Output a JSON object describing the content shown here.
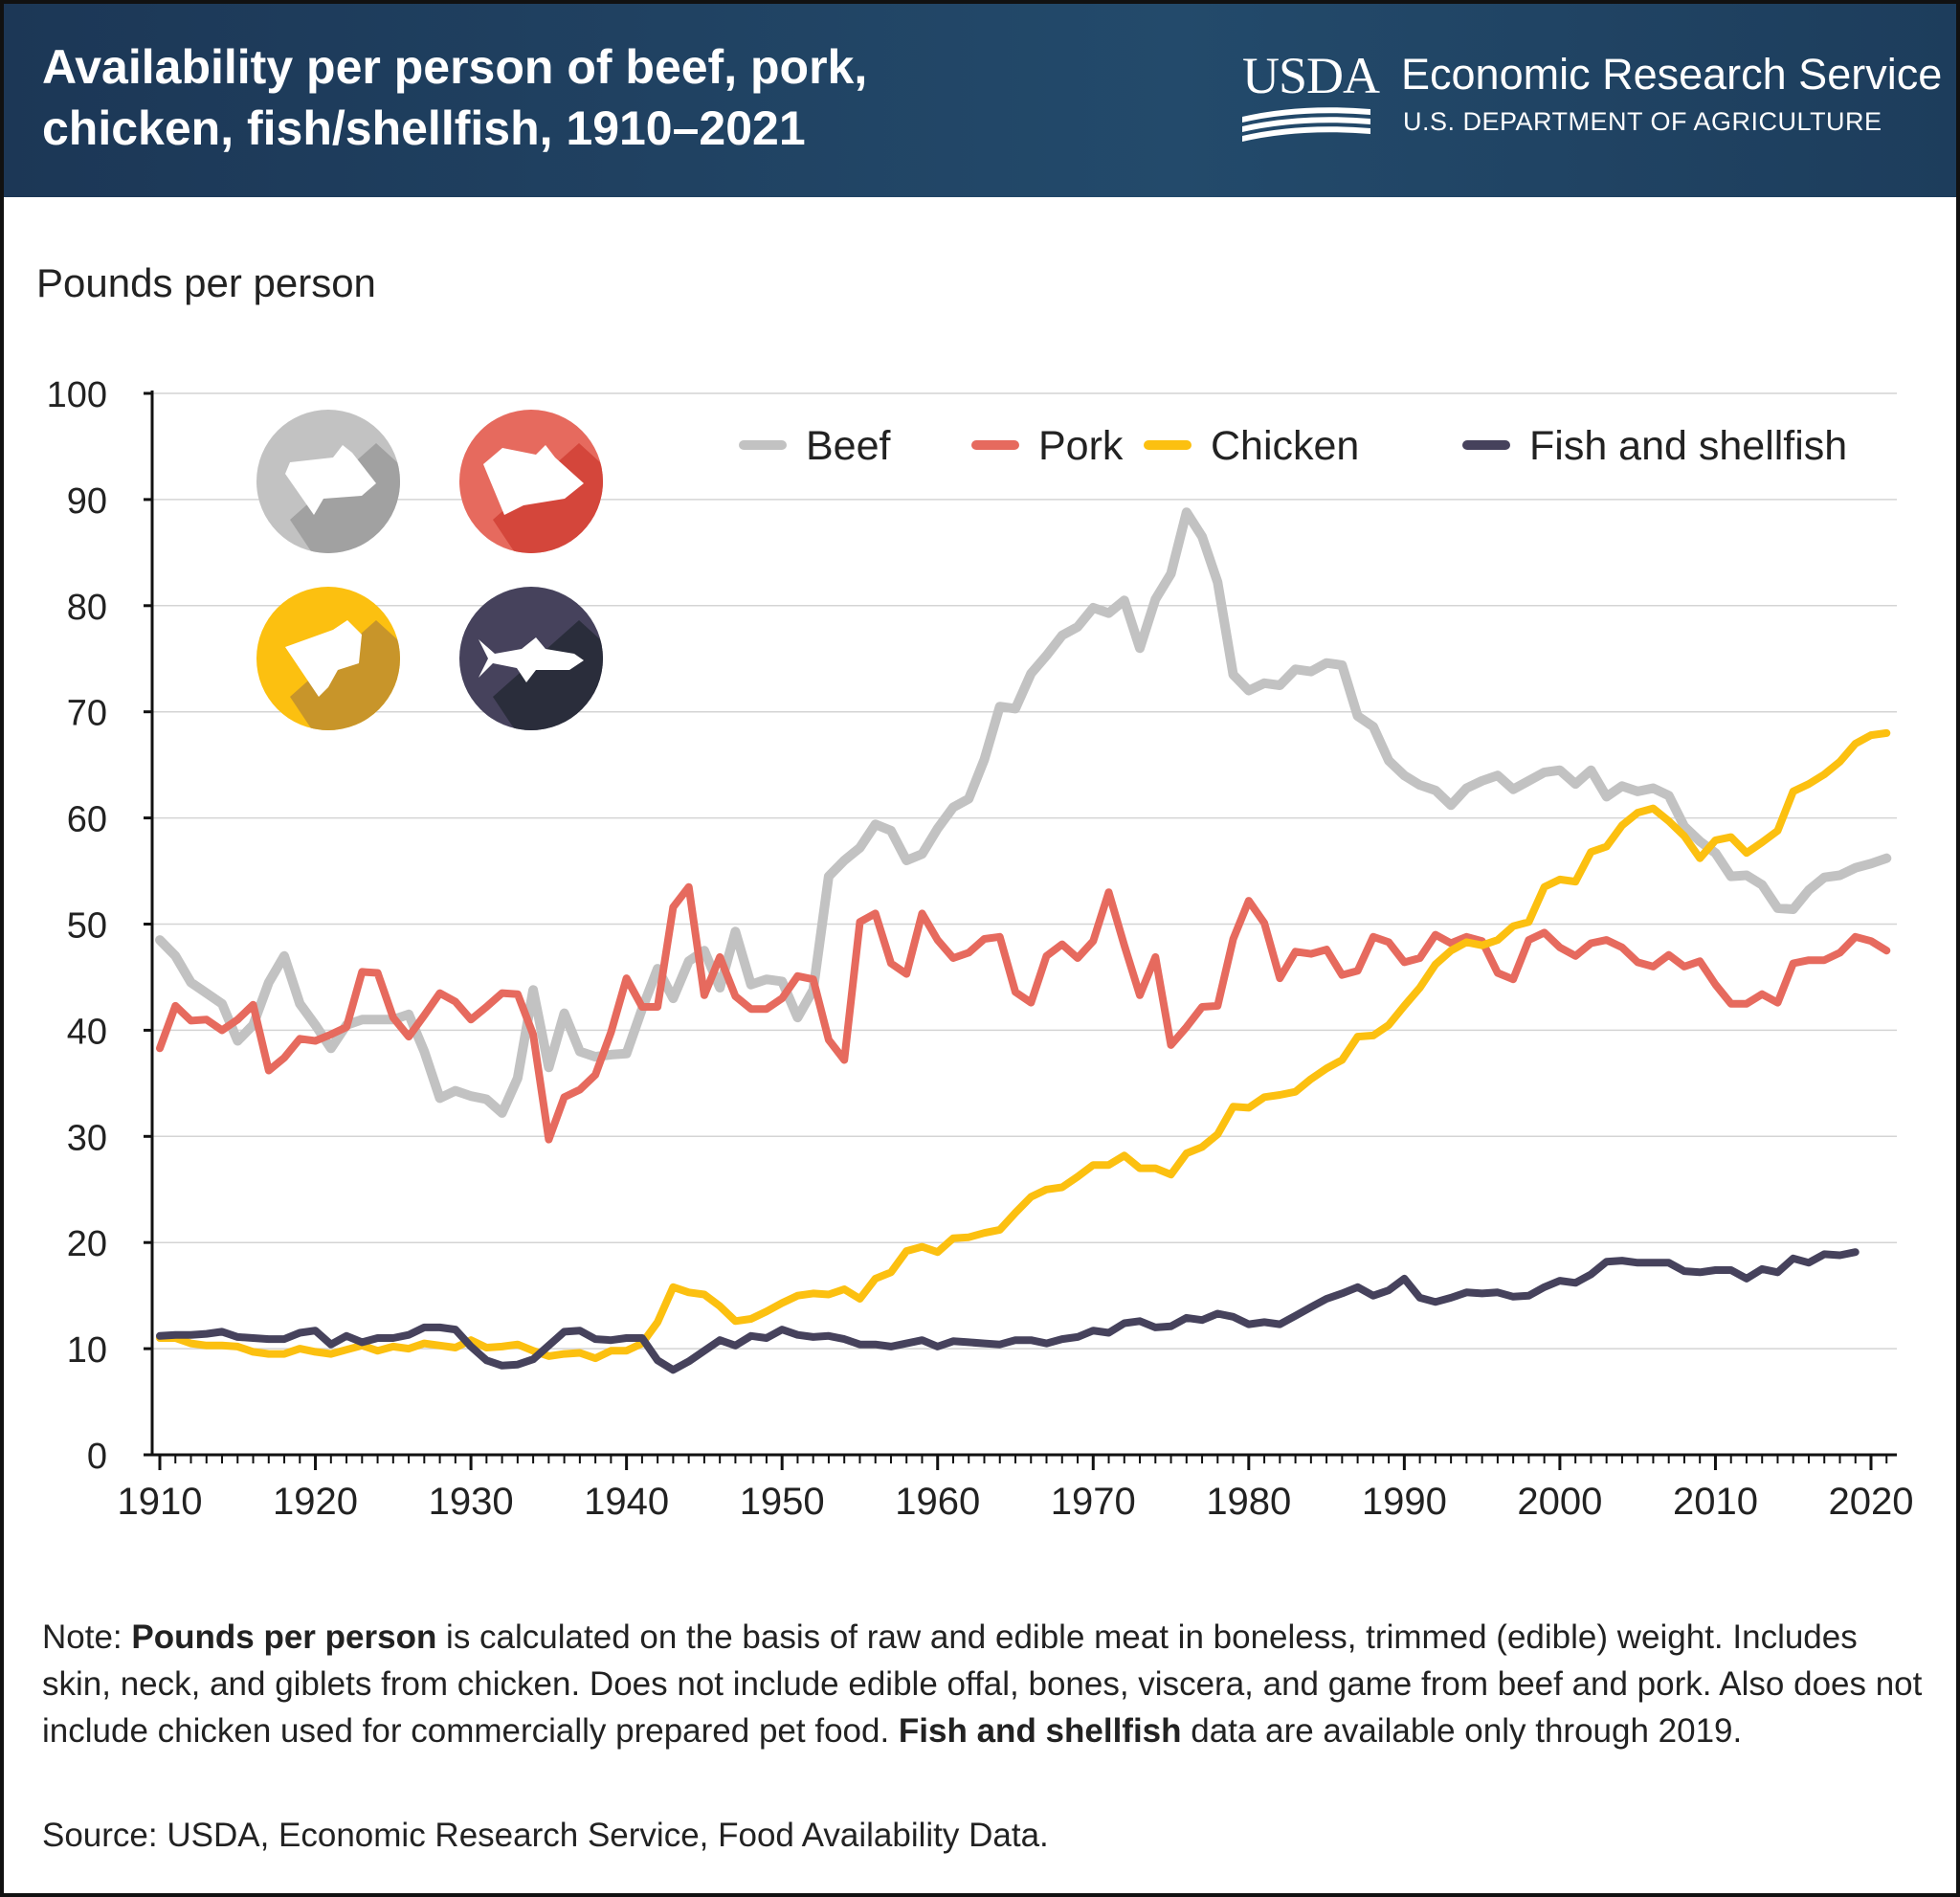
{
  "header": {
    "title": "Availability per person of beef, pork, chicken, fish/shellfish, 1910–2021",
    "logo_text": "USDA",
    "agency": "Economic Research Service",
    "department": "U.S. DEPARTMENT OF AGRICULTURE",
    "background_color": "#1c3756"
  },
  "icons": [
    {
      "name": "cow-icon",
      "color": "#c2c2c2"
    },
    {
      "name": "pig-icon",
      "color": "#e66a5e"
    },
    {
      "name": "chicken-icon",
      "color": "#fcc010"
    },
    {
      "name": "fish-icon",
      "color": "#46425c"
    }
  ],
  "chart_data": {
    "type": "line",
    "title": "Availability per person of beef, pork, chicken, fish/shellfish, 1910–2021",
    "ylabel": "Pounds per person",
    "xlabel": "",
    "xlim": [
      1910,
      2021
    ],
    "ylim": [
      0,
      100
    ],
    "x_ticks": [
      1910,
      1920,
      1930,
      1940,
      1950,
      1960,
      1970,
      1980,
      1990,
      2000,
      2010,
      2020
    ],
    "y_ticks": [
      0,
      10,
      20,
      30,
      40,
      50,
      60,
      70,
      80,
      90,
      100
    ],
    "grid": "horizontal",
    "legend_position": "top-right",
    "x_start": 1910,
    "series": [
      {
        "name": "Beef",
        "color": "#c2c2c2",
        "values": [
          48.5,
          47,
          44.5,
          43.5,
          42.5,
          39,
          40.5,
          44.5,
          47,
          42.5,
          40.5,
          38.3,
          40.5,
          41,
          41,
          41,
          41.5,
          38,
          33.6,
          34.3,
          33.8,
          33.5,
          32.2,
          35.5,
          43.8,
          36.5,
          41.6,
          38,
          37.5,
          37.7,
          37.8,
          42,
          45.8,
          43,
          46.5,
          47.5,
          44,
          49.3,
          44.3,
          44.8,
          44.6,
          41.2,
          43.8,
          54.5,
          56,
          57.2,
          59.4,
          58.8,
          56,
          56.6,
          59,
          61,
          61.8,
          65.5,
          70.5,
          70.3,
          73.6,
          75.3,
          77.2,
          78,
          79.8,
          79.3,
          80.5,
          76,
          80.6,
          83,
          88.8,
          86.5,
          82.2,
          73.5,
          72,
          72.7,
          72.5,
          74,
          73.8,
          74.6,
          74.4,
          69.6,
          68.6,
          65.4,
          64,
          63.1,
          62.6,
          61.2,
          62.8,
          63.5,
          64,
          62.7,
          63.5,
          64.3,
          64.5,
          63.2,
          64.5,
          62,
          63,
          62.5,
          62.8,
          62.1,
          59.2,
          57.8,
          56.7,
          54.5,
          54.6,
          53.7,
          51.5,
          51.4,
          53.2,
          54.4,
          54.6,
          55.3,
          55.7,
          56.2
        ]
      },
      {
        "name": "Pork",
        "color": "#e66a5e",
        "values": [
          38.3,
          42.3,
          40.9,
          41,
          40,
          41,
          42.4,
          36.2,
          37.4,
          39.2,
          39,
          39.6,
          40.3,
          45.5,
          45.4,
          41.2,
          39.4,
          41.4,
          43.5,
          42.7,
          41,
          42.2,
          43.5,
          43.4,
          39.6,
          29.7,
          33.7,
          34.4,
          35.8,
          39.8,
          44.9,
          42.2,
          42.2,
          51.6,
          53.5,
          43.3,
          46.9,
          43.2,
          42,
          42,
          43,
          45.1,
          44.8,
          39.1,
          37.2,
          50.2,
          51,
          46.3,
          45.3,
          51,
          48.5,
          46.8,
          47.3,
          48.6,
          48.8,
          43.6,
          42.6,
          47,
          48.1,
          46.8,
          48.4,
          53,
          48,
          43.3,
          46.9,
          38.6,
          40.3,
          42.2,
          42.3,
          48.6,
          52.2,
          50.1,
          44.9,
          47.4,
          47.2,
          47.6,
          45.2,
          45.6,
          48.8,
          48.3,
          46.4,
          46.8,
          49,
          48.2,
          48.8,
          48.4,
          45.4,
          44.8,
          48.5,
          49.2,
          47.8,
          47,
          48.2,
          48.5,
          47.8,
          46.4,
          46,
          47.1,
          46,
          46.5,
          44.3,
          42.5,
          42.5,
          43.4,
          42.6,
          46.3,
          46.6,
          46.6,
          47.3,
          48.8,
          48.4,
          47.5
        ]
      },
      {
        "name": "Chicken",
        "color": "#fcc010",
        "values": [
          11,
          11,
          10.5,
          10.3,
          10.3,
          10.2,
          9.7,
          9.5,
          9.5,
          10,
          9.7,
          9.5,
          9.9,
          10.3,
          9.8,
          10.2,
          10,
          10.5,
          10.3,
          10.1,
          10.8,
          10.1,
          10.2,
          10.4,
          9.8,
          9.3,
          9.5,
          9.6,
          9.1,
          9.8,
          9.8,
          10.5,
          12.5,
          15.8,
          15.3,
          15.1,
          14,
          12.6,
          12.8,
          13.5,
          14.3,
          15,
          15.2,
          15.1,
          15.6,
          14.7,
          16.6,
          17.2,
          19.2,
          19.6,
          19.1,
          20.4,
          20.5,
          20.9,
          21.2,
          22.8,
          24.3,
          25,
          25.2,
          26.2,
          27.3,
          27.3,
          28.2,
          27,
          27,
          26.4,
          28.4,
          29,
          30.2,
          32.8,
          32.7,
          33.7,
          33.9,
          34.2,
          35.4,
          36.4,
          37.2,
          39.4,
          39.5,
          40.5,
          42.3,
          44,
          46.2,
          47.5,
          48.3,
          48,
          48.5,
          49.8,
          50.2,
          53.5,
          54.2,
          54,
          56.8,
          57.3,
          59.3,
          60.5,
          60.9,
          59.7,
          58.3,
          56.2,
          57.9,
          58.2,
          56.7,
          57.7,
          58.8,
          62.5,
          63.2,
          64.1,
          65.3,
          67,
          67.8,
          68
        ]
      },
      {
        "name": "Fish and shellfish",
        "color": "#46425c",
        "values": [
          11.2,
          11.3,
          11.3,
          11.4,
          11.6,
          11.1,
          11,
          10.9,
          10.9,
          11.5,
          11.7,
          10.4,
          11.2,
          10.6,
          11,
          11,
          11.3,
          12,
          12,
          11.8,
          10.2,
          8.9,
          8.4,
          8.5,
          9,
          10.3,
          11.6,
          11.7,
          10.9,
          10.8,
          11,
          11,
          8.9,
          8,
          8.8,
          9.8,
          10.8,
          10.3,
          11.2,
          11,
          11.8,
          11.3,
          11.1,
          11.2,
          10.9,
          10.4,
          10.4,
          10.2,
          10.5,
          10.8,
          10.2,
          10.7,
          10.6,
          10.5,
          10.4,
          10.8,
          10.8,
          10.5,
          10.9,
          11.1,
          11.7,
          11.5,
          12.4,
          12.6,
          12,
          12.1,
          12.9,
          12.7,
          13.3,
          13,
          12.3,
          12.5,
          12.3,
          13.1,
          13.9,
          14.7,
          15.2,
          15.8,
          15,
          15.5,
          16.6,
          14.8,
          14.4,
          14.8,
          15.3,
          15.2,
          15.3,
          14.9,
          15,
          15.8,
          16.4,
          16.2,
          17,
          18.2,
          18.3,
          18.1,
          18.1,
          18.1,
          17.3,
          17.2,
          17.4,
          17.4,
          16.6,
          17.5,
          17.2,
          18.5,
          18.1,
          18.9,
          18.8,
          19.1
        ]
      }
    ]
  },
  "notes": {
    "note_prefix": "Note: ",
    "bold1": "Pounds per person",
    "text1": " is calculated on the basis of raw and edible meat in boneless, trimmed (edible) weight. Includes skin, neck, and giblets from chicken. Does not include edible offal, bones, viscera, and game from beef and pork. Also does not include chicken used for commercially prepared pet food. ",
    "bold2": "Fish and shellfish",
    "text2": " data are available only through 2019.",
    "source": "Source: USDA, Economic Research Service, Food Availability Data."
  }
}
